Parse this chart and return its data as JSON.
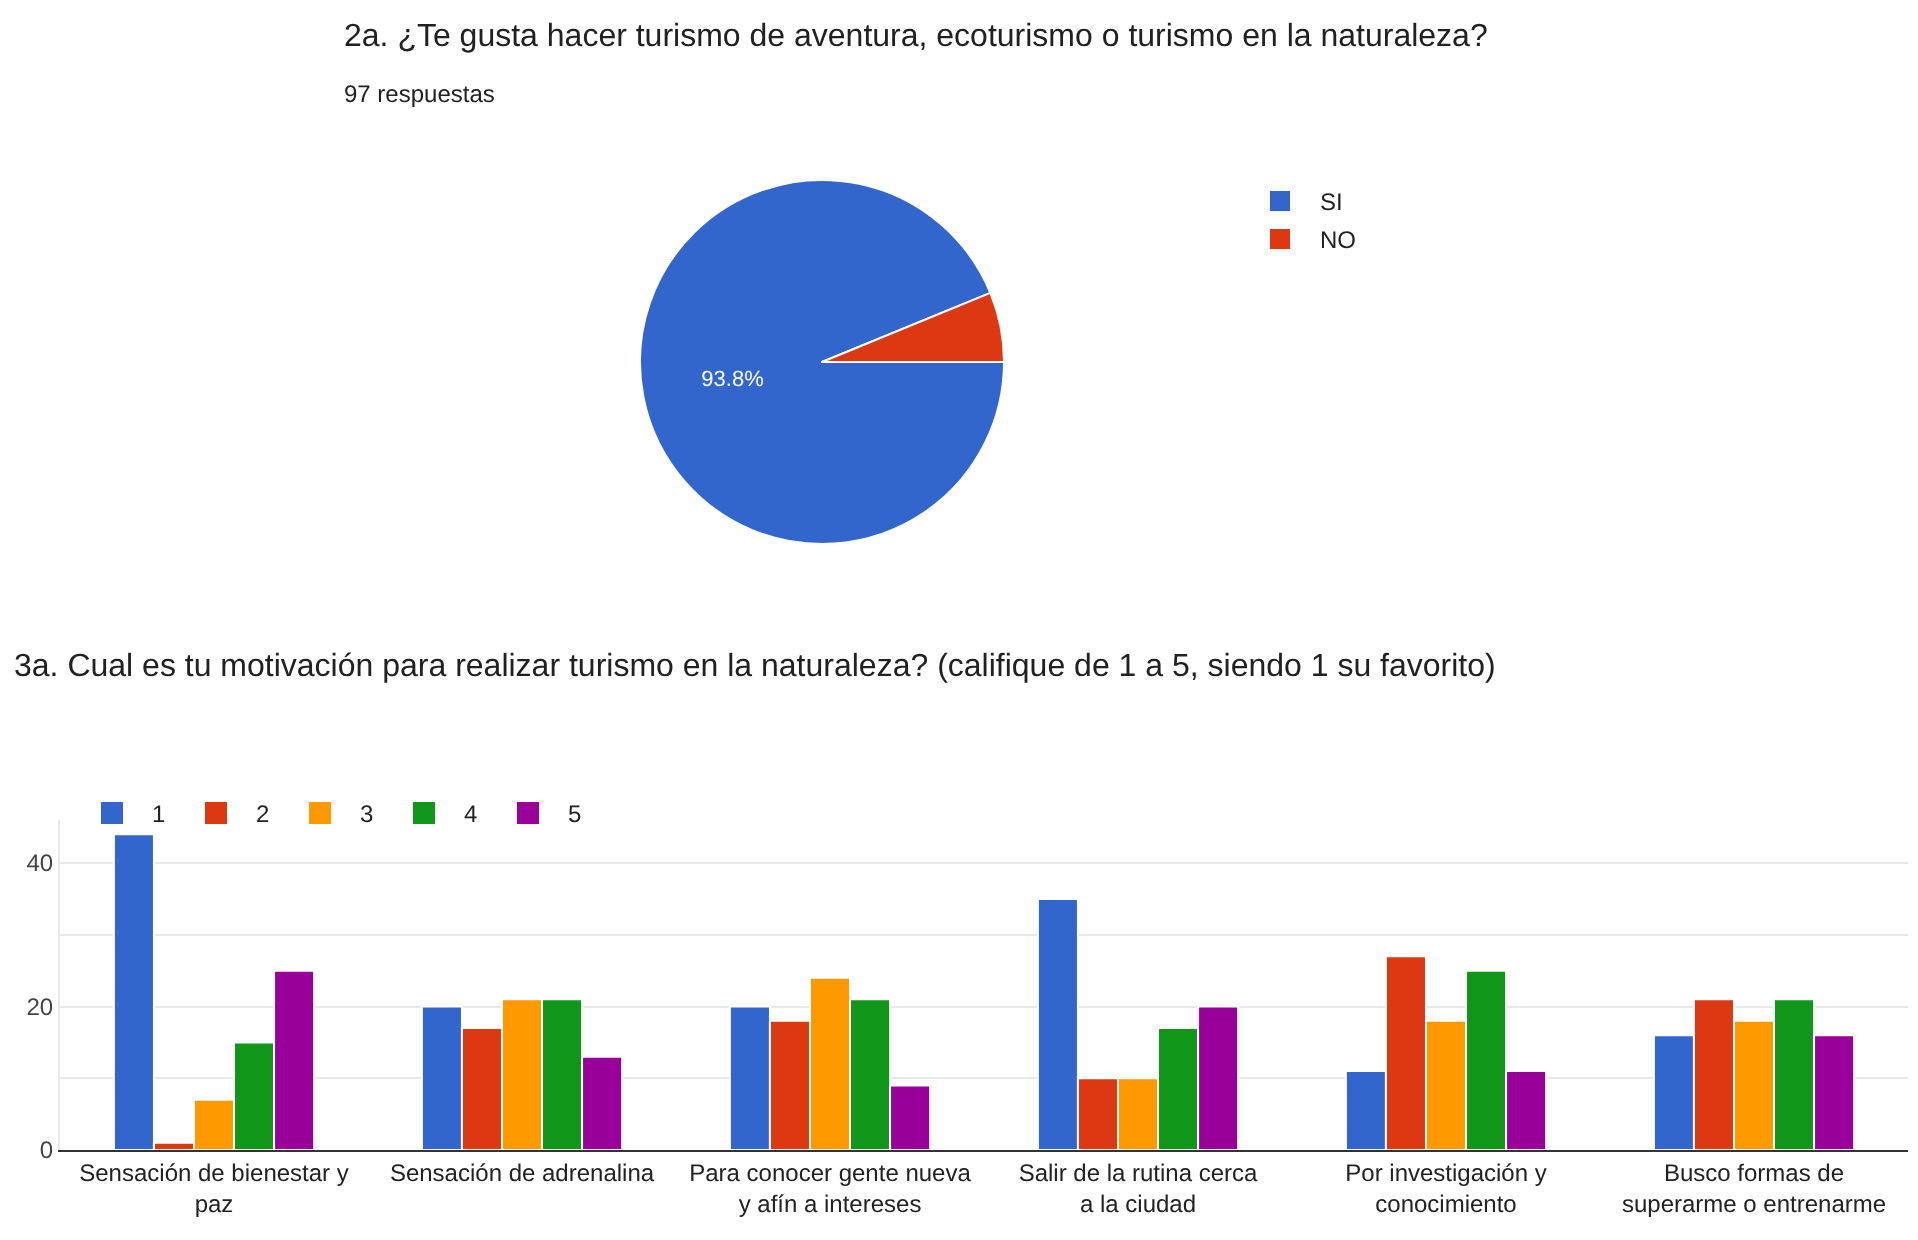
{
  "chart_data": [
    {
      "type": "pie",
      "title": "2a. ¿Te gusta hacer turismo de aventura, ecoturismo o turismo en la naturaleza?",
      "subtitle": "97 respuestas",
      "categories": [
        "SI",
        "NO"
      ],
      "values": [
        93.8,
        6.2
      ],
      "colors": [
        "#3366cc",
        "#dc3912"
      ],
      "value_labels": [
        "93.8%",
        null
      ],
      "legend": "top right"
    },
    {
      "type": "bar",
      "title": "3a. Cual es tu motivación para realizar turismo en la naturaleza? (califique de 1 a 5, siendo 1 su favorito)",
      "categories": [
        "Sensación de bienestar y paz",
        "Sensación de adrenalina",
        "Para conocer gente nueva y afín a intereses",
        "Salir de la rutina cerca a la ciudad",
        "Por investigación y conocimiento",
        "Busco formas de superarme o entrenarme"
      ],
      "series": [
        {
          "name": "1",
          "color": "#3366cc",
          "values": [
            44,
            20,
            20,
            35,
            11,
            16
          ]
        },
        {
          "name": "2",
          "color": "#dc3912",
          "values": [
            1,
            17,
            18,
            10,
            27,
            21
          ]
        },
        {
          "name": "3",
          "color": "#ff9900",
          "values": [
            7,
            21,
            24,
            10,
            18,
            18
          ]
        },
        {
          "name": "4",
          "color": "#109618",
          "values": [
            15,
            21,
            21,
            17,
            25,
            21
          ]
        },
        {
          "name": "5",
          "color": "#990099",
          "values": [
            25,
            13,
            9,
            20,
            11,
            16
          ]
        }
      ],
      "ylim": [
        0,
        46
      ],
      "yticks": [
        0,
        {
          "value": 10,
          "label": null
        },
        20,
        {
          "value": 30,
          "label": null
        },
        40
      ],
      "grid": "y",
      "legend": "top left"
    }
  ]
}
